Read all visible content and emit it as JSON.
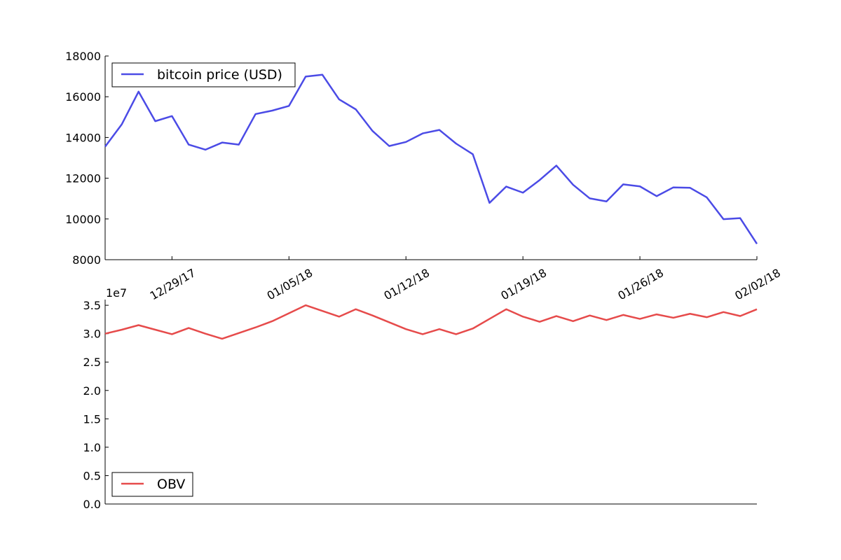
{
  "chart_data": [
    {
      "type": "line",
      "series": [
        {
          "name": "bitcoin price (USD)",
          "color": "#4b4be6",
          "values": [
            13550,
            14650,
            16250,
            14800,
            15050,
            13650,
            13400,
            13750,
            13650,
            15150,
            15320,
            15550,
            16990,
            17080,
            15870,
            15380,
            14320,
            13580,
            13780,
            14200,
            14370,
            13700,
            13180,
            10790,
            11590,
            11290,
            11910,
            12620,
            11680,
            11010,
            10860,
            11700,
            11600,
            11120,
            11550,
            11530,
            11060,
            9990,
            10040,
            8780
          ]
        }
      ],
      "x_start": "12/25/17",
      "x_end": "02/02/18",
      "xticks": [
        "12/29/17",
        "01/05/18",
        "01/12/18",
        "01/19/18",
        "01/26/18",
        "02/02/18"
      ],
      "yticks": [
        "8000",
        "10000",
        "12000",
        "14000",
        "16000",
        "18000"
      ],
      "ylim": [
        8000,
        18000
      ],
      "legend": "top-left",
      "grid": false
    },
    {
      "type": "line",
      "series": [
        {
          "name": "OBV",
          "color": "#e64b4b",
          "values": [
            30000000,
            30700000,
            31500000,
            30700000,
            29900000,
            31000000,
            30000000,
            29100000,
            30100000,
            31100000,
            32200000,
            33600000,
            35000000,
            34000000,
            33000000,
            34300000,
            33200000,
            32000000,
            30800000,
            29900000,
            30800000,
            29900000,
            30900000,
            32600000,
            34300000,
            33000000,
            32100000,
            33100000,
            32200000,
            33200000,
            32400000,
            33300000,
            32600000,
            33400000,
            32800000,
            33500000,
            32900000,
            33800000,
            33100000,
            34300000
          ]
        }
      ],
      "offset_label": "1e7",
      "yticks": [
        "0.0",
        "0.5",
        "1.0",
        "1.5",
        "2.0",
        "2.5",
        "3.0",
        "3.5"
      ],
      "ylim": [
        0,
        36000000
      ],
      "legend": "bottom-left",
      "grid": false
    }
  ]
}
